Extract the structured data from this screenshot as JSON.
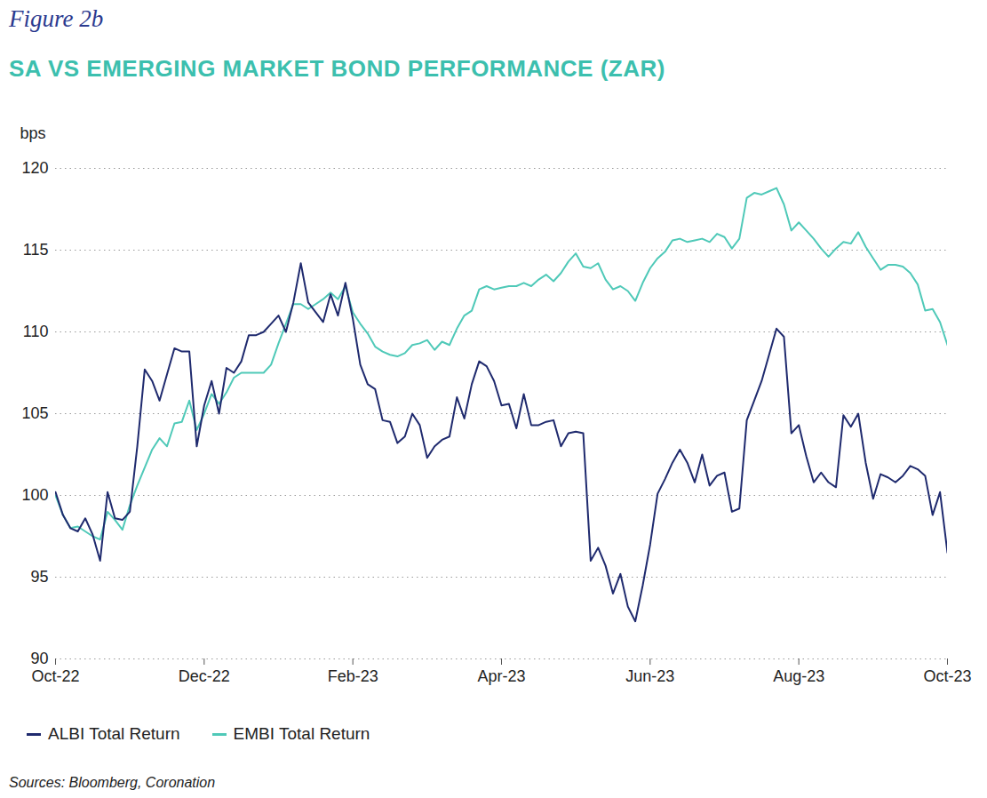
{
  "chart_data": {
    "type": "line",
    "subtitle": "Figure 2b",
    "title": "SA VS EMERGING MARKET BOND PERFORMANCE (ZAR)",
    "y_label": "bps",
    "source": "Sources: Bloomberg, Coronation",
    "grid": true,
    "legend": "bottom-left",
    "xlim": [
      0,
      12
    ],
    "xticks": [
      {
        "value": 0,
        "label": "Oct-22"
      },
      {
        "value": 2,
        "label": "Dec-22"
      },
      {
        "value": 4,
        "label": "Feb-23"
      },
      {
        "value": 6,
        "label": "Apr-23"
      },
      {
        "value": 8,
        "label": "Jun-23"
      },
      {
        "value": 10,
        "label": "Aug-23"
      },
      {
        "value": 12,
        "label": "Oct-23"
      }
    ],
    "ylim": [
      90,
      120
    ],
    "yticks": [
      90,
      95,
      100,
      105,
      110,
      115,
      120
    ],
    "x": [
      0,
      0.1,
      0.2,
      0.3,
      0.4,
      0.5,
      0.6,
      0.7,
      0.8,
      0.9,
      1,
      1.1,
      1.2,
      1.3,
      1.4,
      1.5,
      1.6,
      1.7,
      1.8,
      1.9,
      2,
      2.1,
      2.2,
      2.3,
      2.4,
      2.5,
      2.6,
      2.7,
      2.8,
      2.9,
      3,
      3.1,
      3.2,
      3.3,
      3.4,
      3.5,
      3.6,
      3.7,
      3.8,
      3.9,
      4,
      4.1,
      4.2,
      4.3,
      4.4,
      4.5,
      4.6,
      4.7,
      4.8,
      4.9,
      5,
      5.1,
      5.2,
      5.3,
      5.4,
      5.5,
      5.6,
      5.7,
      5.8,
      5.9,
      6,
      6.1,
      6.2,
      6.3,
      6.4,
      6.5,
      6.6,
      6.7,
      6.8,
      6.9,
      7,
      7.1,
      7.2,
      7.3,
      7.4,
      7.5,
      7.6,
      7.7,
      7.8,
      7.9,
      8,
      8.1,
      8.2,
      8.3,
      8.4,
      8.5,
      8.6,
      8.7,
      8.8,
      8.9,
      9,
      9.1,
      9.2,
      9.3,
      9.4,
      9.5,
      9.6,
      9.7,
      9.8,
      9.9,
      10,
      10.1,
      10.2,
      10.3,
      10.4,
      10.5,
      10.6,
      10.7,
      10.8,
      10.9,
      11,
      11.1,
      11.2,
      11.3,
      11.4,
      11.5,
      11.6,
      11.7,
      11.8,
      11.9,
      12
    ],
    "series": [
      {
        "name": "ALBI Total Return",
        "color": "#1f2a6e",
        "values": [
          100.2,
          98.8,
          98.0,
          97.8,
          98.6,
          97.6,
          96.0,
          100.2,
          98.6,
          98.5,
          99.0,
          103.0,
          107.7,
          107.0,
          105.8,
          107.4,
          109.0,
          108.8,
          108.8,
          103.0,
          105.5,
          107.0,
          105.0,
          107.8,
          107.5,
          108.2,
          109.8,
          109.8,
          110.0,
          110.5,
          111.0,
          110.0,
          111.8,
          114.2,
          111.8,
          111.2,
          110.6,
          112.3,
          111.0,
          113.0,
          110.8,
          108.0,
          106.8,
          106.5,
          104.6,
          104.5,
          103.2,
          103.6,
          105.0,
          104.3,
          102.3,
          103.0,
          103.4,
          103.6,
          106.0,
          104.7,
          106.8,
          108.2,
          107.9,
          107.0,
          105.5,
          105.6,
          104.1,
          106.2,
          104.3,
          104.3,
          104.5,
          104.6,
          103.0,
          103.8,
          103.9,
          103.8,
          96.0,
          96.8,
          95.7,
          94.0,
          95.2,
          93.2,
          92.3,
          94.5,
          97.0,
          100.1,
          101.0,
          102.0,
          102.8,
          102.0,
          100.8,
          102.5,
          100.6,
          101.2,
          101.4,
          99.0,
          99.2,
          104.6,
          105.8,
          107.0,
          108.6,
          110.2,
          109.7,
          103.8,
          104.3,
          102.4,
          100.8,
          101.4,
          100.8,
          100.5,
          104.9,
          104.2,
          105.0,
          102.0,
          99.8,
          101.3,
          101.1,
          100.8,
          101.2,
          101.8,
          101.6,
          101.2,
          98.8,
          100.2,
          96.5
        ]
      },
      {
        "name": "EMBI Total Return",
        "color": "#4fc9b8",
        "values": [
          100.0,
          98.8,
          98.0,
          98.1,
          97.8,
          97.5,
          97.3,
          99.0,
          98.5,
          97.9,
          99.4,
          100.6,
          101.7,
          102.8,
          103.5,
          103.0,
          104.4,
          104.5,
          105.8,
          104.0,
          105.0,
          106.2,
          105.6,
          106.3,
          107.2,
          107.5,
          107.5,
          107.5,
          107.5,
          108.0,
          109.3,
          110.5,
          111.7,
          111.7,
          111.4,
          111.7,
          112.0,
          112.4,
          112.0,
          112.8,
          111.2,
          110.5,
          109.9,
          109.1,
          108.8,
          108.6,
          108.5,
          108.7,
          109.2,
          109.3,
          109.5,
          108.9,
          109.4,
          109.2,
          110.2,
          111.0,
          111.3,
          112.6,
          112.8,
          112.6,
          112.7,
          112.8,
          112.8,
          113.0,
          112.8,
          113.2,
          113.5,
          113.1,
          113.6,
          114.3,
          114.8,
          114.0,
          113.9,
          114.2,
          113.2,
          112.6,
          112.8,
          112.5,
          111.9,
          113.0,
          113.9,
          114.5,
          114.9,
          115.6,
          115.7,
          115.5,
          115.6,
          115.7,
          115.5,
          116.0,
          115.8,
          115.1,
          115.7,
          118.2,
          118.5,
          118.4,
          118.6,
          118.8,
          117.8,
          116.2,
          116.7,
          116.2,
          115.7,
          115.1,
          114.6,
          115.1,
          115.5,
          115.4,
          116.1,
          115.2,
          114.5,
          113.8,
          114.1,
          114.1,
          114.0,
          113.6,
          112.9,
          111.3,
          111.4,
          110.6,
          109.2
        ]
      }
    ]
  }
}
